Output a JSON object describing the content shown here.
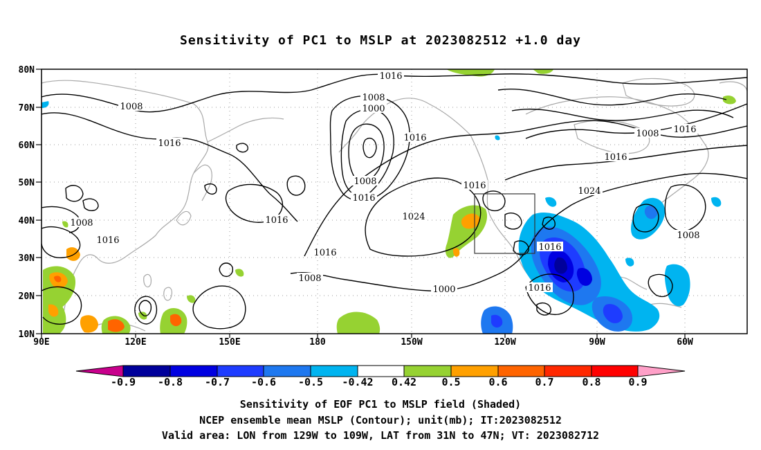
{
  "title": "Sensitivity of PC1 to MSLP at 2023082512 +1.0 day",
  "lat_labels": [
    "80N",
    "70N",
    "60N",
    "50N",
    "40N",
    "30N",
    "20N",
    "10N"
  ],
  "lon_labels": [
    "90E",
    "120E",
    "150E",
    "180",
    "150W",
    "120W",
    "90W",
    "60W"
  ],
  "map_extent": {
    "lon_min": "90E",
    "lon_max": "44W",
    "lat_min": "10N",
    "lat_max": "80N"
  },
  "valid_area_box": {
    "lon": [
      "129W",
      "109W"
    ],
    "lat": [
      "31N",
      "47N"
    ]
  },
  "contour_labels": [
    "1016",
    "1008",
    "1016",
    "1008",
    "1000",
    "1016",
    "1008",
    "1016",
    "1024",
    "1016",
    "1016",
    "1008",
    "1000",
    "1016",
    "1024",
    "1008",
    "1008",
    "1016",
    "1016",
    "1016",
    "1016",
    "1008",
    "1016"
  ],
  "colorbar": {
    "labels": [
      "-0.9",
      "-0.8",
      "-0.7",
      "-0.6",
      "-0.5",
      "-0.42",
      "0.42",
      "0.5",
      "0.6",
      "0.7",
      "0.8",
      "0.9"
    ],
    "colors": [
      "#c8008c",
      "#00009b",
      "#0000e1",
      "#1e3cff",
      "#1e78f0",
      "#00b4f0",
      "#ffffff",
      "#96d232",
      "#ffa000",
      "#ff6400",
      "#ff2800",
      "#ff0000",
      "#ffa0c8"
    ]
  },
  "colors": {
    "positive_green": "#96d232",
    "positive_orange": "#ffa000",
    "negative_blue": "#1e3cff",
    "negative_light": "#00b4f0",
    "coast": "#a8a8a8"
  },
  "footer": {
    "line1": "Sensitivity of EOF PC1 to MSLP field (Shaded)",
    "line2": "NCEP ensemble mean MSLP (Contour); unit(mb); IT:2023082512",
    "line3": "Valid area: LON from 129W to 109W, LAT from 31N to 47N; VT: 2023082712"
  }
}
